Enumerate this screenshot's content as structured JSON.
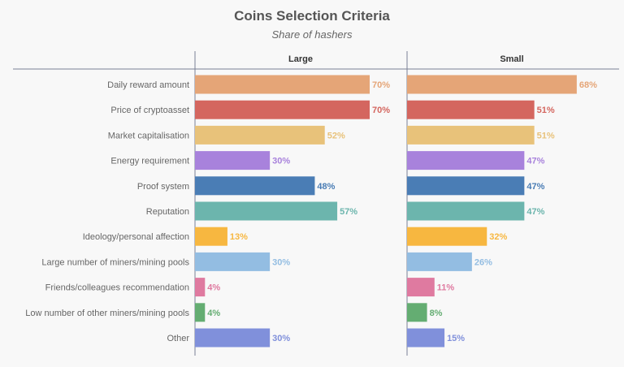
{
  "chart_data": {
    "type": "bar",
    "orientation": "horizontal",
    "title": "Coins Selection Criteria",
    "subtitle": "Share of hashers",
    "value_suffix": "%",
    "xlim": [
      0,
      100
    ],
    "grid": false,
    "categories": [
      "Daily reward amount",
      "Price of cryptoasset",
      "Market capitalisation",
      "Energy requirement",
      "Proof system",
      "Reputation",
      "Ideology/personal affection",
      "Large number of miners/mining pools",
      "Friends/colleagues recommendation",
      "Low number of other miners/mining pools",
      "Other"
    ],
    "colors": [
      "#e5a577",
      "#d4665f",
      "#e8c27a",
      "#a882dc",
      "#4a7db5",
      "#6cb5ad",
      "#f7b740",
      "#93bde2",
      "#df7aa0",
      "#64ad72",
      "#8090db"
    ],
    "series": [
      {
        "name": "Large",
        "values": [
          70,
          70,
          52,
          30,
          48,
          57,
          13,
          30,
          4,
          4,
          30
        ]
      },
      {
        "name": "Small",
        "values": [
          68,
          51,
          51,
          47,
          47,
          47,
          32,
          26,
          11,
          8,
          15
        ]
      }
    ]
  }
}
